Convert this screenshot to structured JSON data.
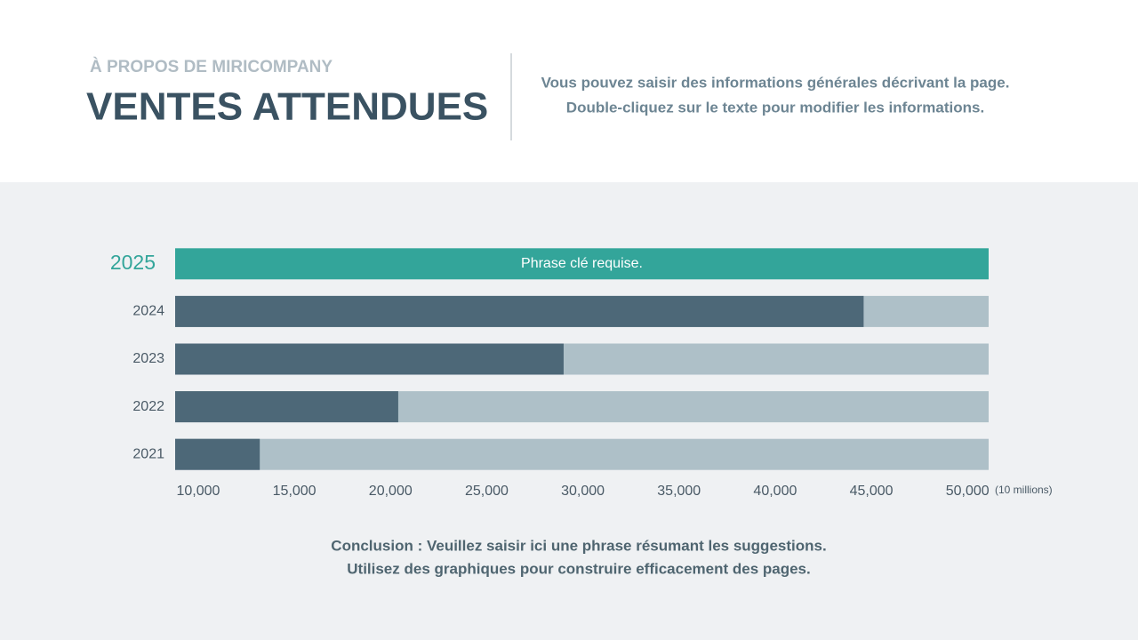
{
  "header": {
    "eyebrow": "À PROPOS DE MIRICOMPANY",
    "title": "VENTES ATTENDUES",
    "description": [
      "Vous pouvez saisir des informations générales décrivant la page.",
      "Double-cliquez sur le texte pour modifier les informations."
    ]
  },
  "chart_data": {
    "type": "hbar",
    "categories": [
      "2025",
      "2024",
      "2023",
      "2022",
      "2021"
    ],
    "values": [
      null,
      44600,
      29000,
      20400,
      13200
    ],
    "color": "#4d6878",
    "track_color": "#aec0c8",
    "highlight": {
      "index": 0,
      "label": "Phrase clé requise.",
      "color": "#33a59a"
    },
    "xlabel": "(10 millions)",
    "xlim": [
      8800,
      51100
    ],
    "xticks": [
      {
        "value": 10000,
        "label": "10,000"
      },
      {
        "value": 15000,
        "label": "15,000"
      },
      {
        "value": 20000,
        "label": "20,000"
      },
      {
        "value": 25000,
        "label": "25,000"
      },
      {
        "value": 30000,
        "label": "30,000"
      },
      {
        "value": 35000,
        "label": "35,000"
      },
      {
        "value": 40000,
        "label": "40,000"
      },
      {
        "value": 45000,
        "label": "45,000"
      },
      {
        "value": 50000,
        "label": "50,000"
      }
    ]
  },
  "conclusion": [
    "Conclusion : Veuillez saisir ici une phrase résumant les suggestions.",
    "Utilisez des graphiques pour construire efficacement des pages."
  ]
}
